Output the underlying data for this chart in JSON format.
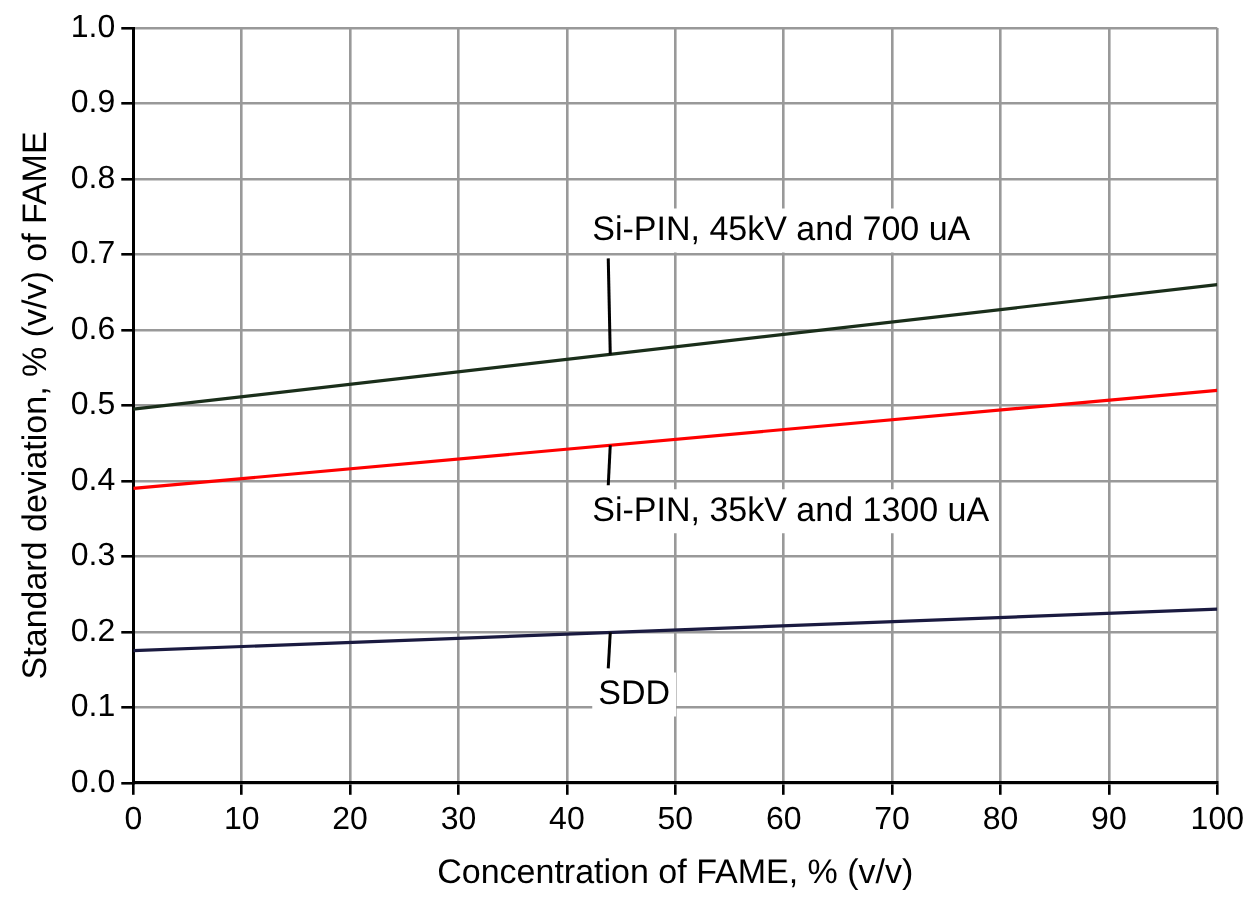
{
  "chart_data": {
    "type": "line",
    "xlabel": "Concentration of FAME, % (v/v)",
    "ylabel": "Standard deviation, % (v/v) of FAME",
    "x": [
      0,
      100
    ],
    "series": [
      {
        "name": "Si-PIN, 45kV and 700 uA",
        "color": "#1a2e1a",
        "values": [
          0.495,
          0.66
        ]
      },
      {
        "name": "Si-PIN, 35kV and 1300 uA",
        "color": "#ff0000",
        "values": [
          0.39,
          0.52
        ]
      },
      {
        "name": "SDD",
        "color": "#1a1a40",
        "values": [
          0.175,
          0.23
        ]
      }
    ],
    "xlim": [
      0,
      100
    ],
    "xticks": [
      0,
      10,
      20,
      30,
      40,
      50,
      60,
      70,
      80,
      90,
      100
    ],
    "ylim": [
      0,
      1
    ],
    "yticks": [
      {
        "value": 0,
        "label": "0.0"
      },
      0.1,
      0.2,
      0.3,
      0.4,
      0.5,
      0.6,
      0.7,
      0.8,
      0.9,
      {
        "value": 1,
        "label": "1.0"
      }
    ],
    "grid": true,
    "legend": false,
    "marker": "none",
    "line_style": "solid"
  }
}
